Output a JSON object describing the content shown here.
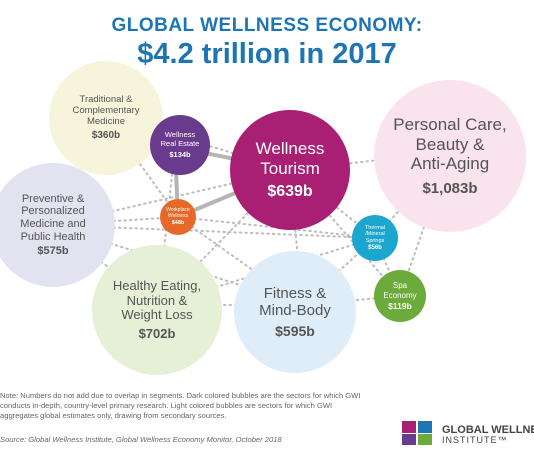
{
  "header": {
    "line1": "GLOBAL WELLNESS ECONOMY:",
    "line2": "$4.2 trillion in 2017"
  },
  "colors": {
    "title": "#1d75b3",
    "connector_dots": "#bdbdbd",
    "connector_solid": "#b5b5b5"
  },
  "bubbles": {
    "traditional": {
      "label": "Traditional &\nComplementary\nMedicine",
      "value": "$360b",
      "color": "#f7f4dc"
    },
    "real_estate": {
      "label": "Wellness\nReal Estate",
      "value": "$134b",
      "color": "#6a3a8c"
    },
    "tourism": {
      "label": "Wellness\nTourism",
      "value": "$639b",
      "color": "#a81f74"
    },
    "personal_care": {
      "label": "Personal Care,\nBeauty &\nAnti-Aging",
      "value": "$1,083b",
      "color": "#f9e3ec"
    },
    "preventive": {
      "label": "Preventive &\nPersonalized\nMedicine and\nPublic Health",
      "value": "$575b",
      "color": "#e3e2f1"
    },
    "workplace": {
      "label": "Workplace\nWellness",
      "value": "$48b",
      "color": "#e6692a"
    },
    "thermal": {
      "label": "Thermal\n/Mineral\nSprings",
      "value": "$56b",
      "color": "#1aa6cf"
    },
    "spa": {
      "label": "Spa\nEconomy",
      "value": "$119b",
      "color": "#6cab3b"
    },
    "healthy": {
      "label": "Healthy Eating,\nNutrition &\nWeight Loss",
      "value": "$702b",
      "color": "#e5f0d6"
    },
    "fitness": {
      "label": "Fitness &\nMind-Body",
      "value": "$595b",
      "color": "#dfedf8"
    }
  },
  "footer": {
    "note": "Note: Numbers do not add due to overlap in segments. Dark colored bubbles are the sectors for which GWI conducts in-depth, country-level primary research. Light colored bubbles are sectors for which GWI aggregates global estimates only, drawing from secondary sources.",
    "source": "Source: Global Wellness Institute, Global Wellness Economy Monitor, October 2018",
    "logo_line1": "GLOBAL WELLNESS",
    "logo_line2": "INSTITUTE™"
  }
}
